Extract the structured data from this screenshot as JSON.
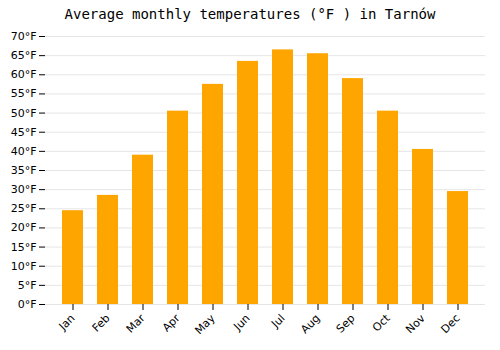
{
  "chart_data": {
    "type": "bar",
    "title": "Average monthly temperatures (°F ) in Tarnów",
    "categories": [
      "Jan",
      "Feb",
      "Mar",
      "Apr",
      "May",
      "Jun",
      "Jul",
      "Aug",
      "Sep",
      "Oct",
      "Nov",
      "Dec"
    ],
    "values": [
      24.5,
      28.5,
      39.0,
      50.5,
      57.5,
      63.5,
      66.5,
      65.5,
      59.0,
      50.5,
      40.5,
      29.5
    ],
    "color": "#FFA500",
    "ylim": [
      0,
      70
    ],
    "yticks": [
      {
        "value": 0,
        "label": "0°F"
      },
      {
        "value": 5,
        "label": "5°F"
      },
      {
        "value": 10,
        "label": "10°F"
      },
      {
        "value": 15,
        "label": "15°F"
      },
      {
        "value": 20,
        "label": "20°F"
      },
      {
        "value": 25,
        "label": "25°F"
      },
      {
        "value": 30,
        "label": "30°F"
      },
      {
        "value": 35,
        "label": "35°F"
      },
      {
        "value": 40,
        "label": "40°F"
      },
      {
        "value": 45,
        "label": "45°F"
      },
      {
        "value": 50,
        "label": "50°F"
      },
      {
        "value": 55,
        "label": "55°F"
      },
      {
        "value": 60,
        "label": "60°F"
      },
      {
        "value": 65,
        "label": "65°F"
      },
      {
        "value": 70,
        "label": "70°F"
      }
    ],
    "grid": true
  }
}
